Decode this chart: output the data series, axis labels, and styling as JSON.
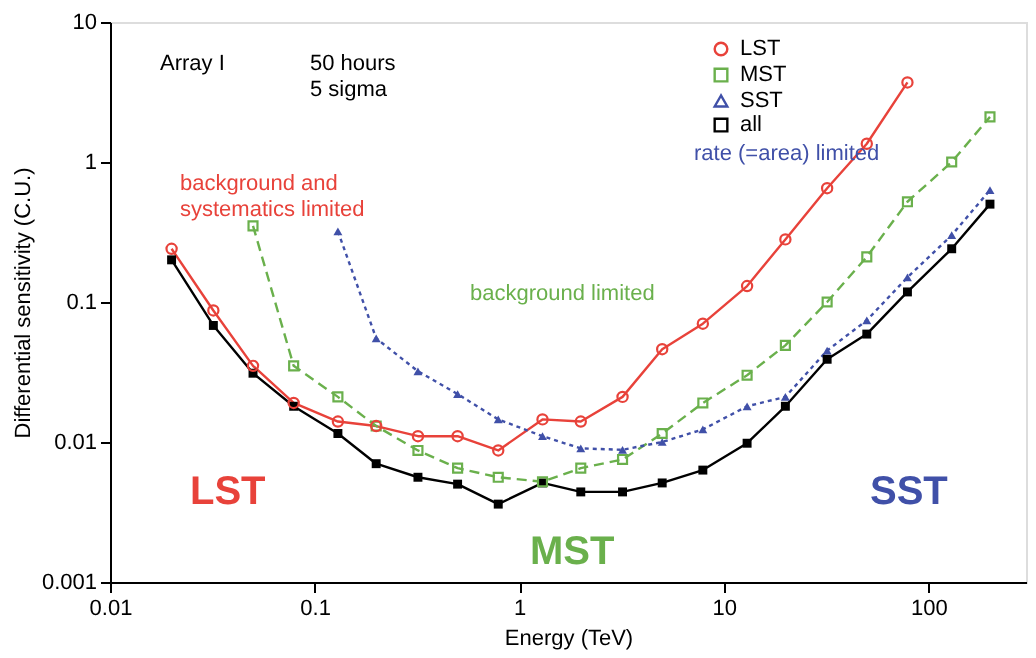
{
  "chart_data": {
    "type": "line",
    "xlabel": "Energy (TeV)",
    "ylabel": "Differential sensitivity (C.U.)",
    "log": "xy",
    "xlim": [
      0.01,
      300
    ],
    "ylim": [
      0.001,
      10
    ],
    "xticks": [
      0.01,
      0.1,
      1,
      10,
      100
    ],
    "yticks": [
      0.001,
      0.01,
      0.1,
      1,
      10
    ],
    "grid": false,
    "legend": "top right",
    "series": [
      {
        "name": "LST",
        "color": "#e8423a",
        "marker": "circle",
        "line_style": "solid",
        "x": [
          0.02,
          0.032,
          0.05,
          0.079,
          0.13,
          0.2,
          0.32,
          0.5,
          0.79,
          1.3,
          2,
          3.2,
          5,
          7.9,
          13,
          20,
          32,
          50,
          79
        ],
        "values": [
          0.24,
          0.087,
          0.035,
          0.019,
          0.014,
          0.013,
          0.011,
          0.011,
          0.0087,
          0.0145,
          0.014,
          0.021,
          0.046,
          0.07,
          0.13,
          0.28,
          0.65,
          1.35,
          3.7
        ]
      },
      {
        "name": "MST",
        "color": "#6ab04c",
        "marker": "square",
        "line_style": "dashed",
        "x": [
          0.05,
          0.079,
          0.13,
          0.2,
          0.32,
          0.5,
          0.79,
          1.3,
          2,
          3.2,
          5,
          7.9,
          13,
          20,
          32,
          50,
          79,
          130,
          200
        ],
        "values": [
          0.35,
          0.035,
          0.021,
          0.013,
          0.0087,
          0.0065,
          0.0056,
          0.0052,
          0.0065,
          0.0075,
          0.0115,
          0.019,
          0.03,
          0.049,
          0.1,
          0.21,
          0.52,
          1.0,
          2.1
        ]
      },
      {
        "name": "SST",
        "color": "#4050a8",
        "marker": "triangle",
        "line_style": "dotted",
        "x": [
          0.13,
          0.2,
          0.32,
          0.5,
          0.79,
          1.3,
          2,
          3.2,
          5,
          7.9,
          13,
          20,
          32,
          50,
          79,
          130,
          200
        ],
        "values": [
          0.32,
          0.055,
          0.032,
          0.022,
          0.0145,
          0.011,
          0.009,
          0.0088,
          0.01,
          0.0123,
          0.018,
          0.021,
          0.045,
          0.074,
          0.15,
          0.3,
          0.63
        ]
      },
      {
        "name": "all",
        "color": "#000000",
        "marker": "square",
        "line_style": "solid",
        "x": [
          0.02,
          0.032,
          0.05,
          0.079,
          0.13,
          0.2,
          0.32,
          0.5,
          0.79,
          1.3,
          2,
          3.2,
          5,
          7.9,
          13,
          20,
          32,
          50,
          79,
          130,
          200
        ],
        "values": [
          0.2,
          0.068,
          0.031,
          0.018,
          0.0115,
          0.007,
          0.0056,
          0.005,
          0.0036,
          0.0051,
          0.0044,
          0.0044,
          0.0051,
          0.0063,
          0.0098,
          0.018,
          0.039,
          0.059,
          0.118,
          0.24,
          0.5
        ]
      }
    ],
    "annotations": [
      "Array I",
      "50 hours\n5 sigma",
      "background and\nsystematics limited",
      "background limited",
      "rate (=area) limited",
      "LST",
      "MST",
      "SST"
    ]
  }
}
